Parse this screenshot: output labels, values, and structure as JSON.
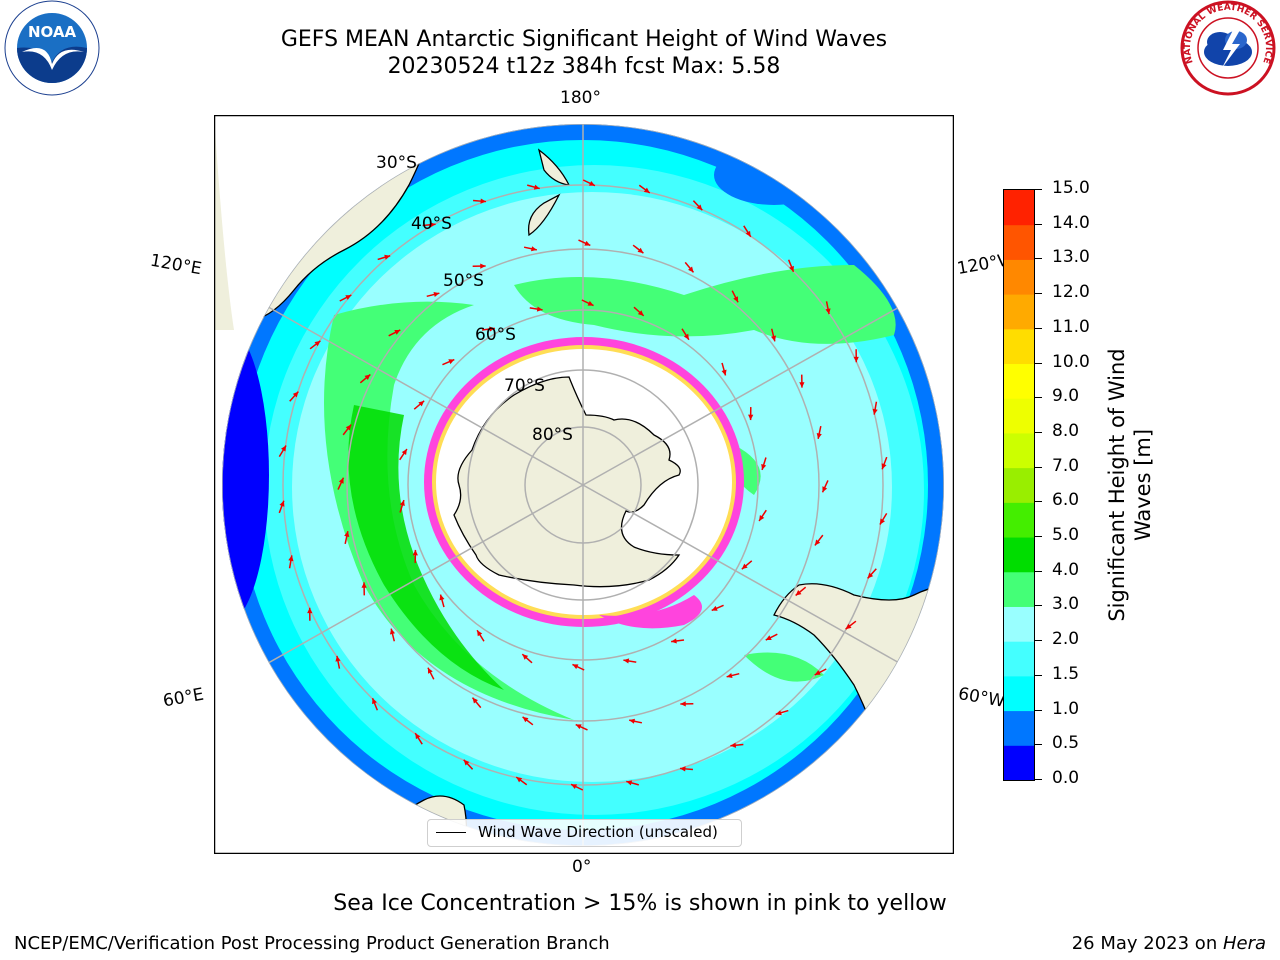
{
  "title": {
    "line1": "GEFS MEAN Antarctic Significant Height of Wind Waves",
    "line2": "20230524 t12z 384h fcst   Max: 5.58"
  },
  "logos": {
    "left": "NOAA",
    "right": "NATIONAL WEATHER SERVICE"
  },
  "map": {
    "projection": "south-polar-stereographic",
    "lon_labels": {
      "top": "180°",
      "bottom": "0°",
      "upper_left": "120°E",
      "upper_right": "120°W",
      "lower_left": "60°E",
      "lower_right": "60°W"
    },
    "lat_labels": [
      "30°S",
      "40°S",
      "50°S",
      "60°S",
      "70°S",
      "80°S"
    ],
    "legend": "Wind Wave Direction (unscaled)",
    "colors": {
      "land": "#efefdc",
      "ice": "#ff44dd",
      "ocean_low": "#00ffff",
      "ocean_mid": "#99ffff",
      "ocean_high": "#33ff77",
      "ocean_max": "#00cc00",
      "arrow": "#ee0000"
    }
  },
  "colorbar": {
    "label_line1": "Significant Height of Wind",
    "label_line2": "Waves [m]",
    "ticks": [
      "0.0",
      "0.5",
      "1.0",
      "1.5",
      "2.0",
      "3.0",
      "4.0",
      "5.0",
      "6.0",
      "7.0",
      "8.0",
      "9.0",
      "10.0",
      "11.0",
      "12.0",
      "13.0",
      "14.0",
      "15.0"
    ],
    "colors": [
      "#0000ff",
      "#0077ff",
      "#00ffff",
      "#44ffff",
      "#99ffff",
      "#44ff77",
      "#00dd00",
      "#44ee00",
      "#99ee00",
      "#ccff00",
      "#eeff00",
      "#ffff00",
      "#ffdd00",
      "#ffaa00",
      "#ff8800",
      "#ff5500",
      "#ff2200"
    ]
  },
  "subtitle": "Sea Ice Concentration > 15% is shown in pink to yellow",
  "footer": {
    "left": "NCEP/EMC/Verification Post Processing Product Generation Branch",
    "right_date": "26 May 2023 on ",
    "right_machine": "Hera"
  }
}
